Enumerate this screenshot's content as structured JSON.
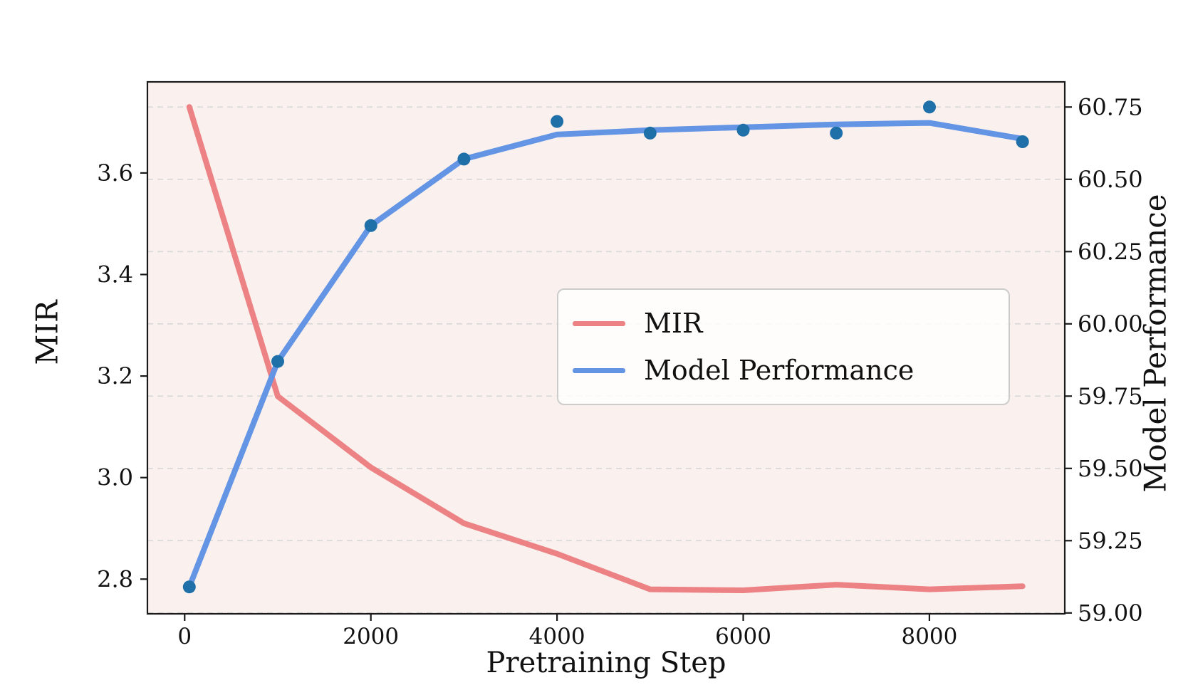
{
  "figure": {
    "background": "#ffffff",
    "axes_background": "#faf1ef",
    "gridline_color": "#d8d8d8",
    "spine_color": "#1a1a1a",
    "text_color": "#111111"
  },
  "chart_data": {
    "type": "line",
    "title": "",
    "xlabel": "Pretraining Step",
    "ylabel_left": "MIR",
    "ylabel_right": "Model Performance",
    "x": [
      50,
      1000,
      2000,
      3000,
      4000,
      5000,
      6000,
      7000,
      8000,
      9000
    ],
    "series": [
      {
        "name": "MIR",
        "axis": "left",
        "style": "line",
        "color": "#ed8285",
        "linewidth": 8,
        "values": [
          3.73,
          3.16,
          3.02,
          2.91,
          2.85,
          2.78,
          2.778,
          2.789,
          2.78,
          2.786
        ]
      },
      {
        "name": "Model Performance",
        "axis": "right",
        "style": "line",
        "color": "#6494e4",
        "linewidth": 8,
        "values": [
          59.09,
          59.87,
          60.34,
          60.57,
          60.655,
          60.67,
          60.68,
          60.69,
          60.695,
          60.64
        ]
      },
      {
        "name": "Model Performance (points)",
        "axis": "right",
        "style": "scatter",
        "color": "#1f6fa8",
        "marker_radius": 9,
        "values": [
          59.09,
          59.87,
          60.34,
          60.57,
          60.7,
          60.66,
          60.67,
          60.66,
          60.75,
          60.63
        ]
      }
    ],
    "xlim": [
      -400,
      9454
    ],
    "ylim_left": [
      2.7317,
      3.7794
    ],
    "ylim_right": [
      58.997,
      60.837
    ],
    "x_ticks": [
      {
        "v": 0,
        "label": "0"
      },
      {
        "v": 2000,
        "label": "2000"
      },
      {
        "v": 4000,
        "label": "4000"
      },
      {
        "v": 6000,
        "label": "6000"
      },
      {
        "v": 8000,
        "label": "8000"
      }
    ],
    "left_ticks": [
      {
        "v": 2.8,
        "label": "2.8"
      },
      {
        "v": 3.0,
        "label": "3.0"
      },
      {
        "v": 3.2,
        "label": "3.2"
      },
      {
        "v": 3.4,
        "label": "3.4"
      },
      {
        "v": 3.6,
        "label": "3.6"
      }
    ],
    "right_ticks": [
      {
        "v": 59.0,
        "label": "59.00"
      },
      {
        "v": 59.25,
        "label": "59.25"
      },
      {
        "v": 59.5,
        "label": "59.50"
      },
      {
        "v": 59.75,
        "label": "59.75"
      },
      {
        "v": 60.0,
        "label": "60.00"
      },
      {
        "v": 60.25,
        "label": "60.25"
      },
      {
        "v": 60.5,
        "label": "60.50"
      },
      {
        "v": 60.75,
        "label": "60.75"
      }
    ],
    "grid": {
      "show": true,
      "style": "dashed",
      "follows": "right_ticks"
    },
    "legend": {
      "position": "center-right",
      "entries": [
        "MIR",
        "Model Performance"
      ]
    }
  }
}
